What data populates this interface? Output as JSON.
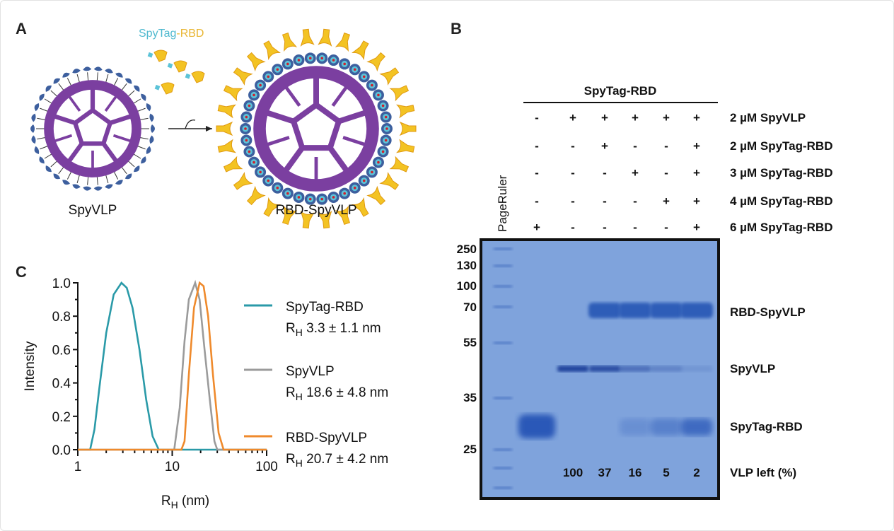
{
  "panels": {
    "a": {
      "label": "A",
      "reagent_part1": "SpyTag",
      "reagent_part2": "-RBD",
      "left_particle": "SpyVLP",
      "right_particle": "RBD-SpyVLP",
      "colors": {
        "capsid": "#7b3fa0",
        "spycatcher": "#3d5f9e",
        "spytag": "#5cc3d8",
        "rbd": "#f3c323",
        "rbd_text": "#e8b531"
      }
    },
    "b": {
      "label": "B",
      "group_header": "SpyTag-RBD",
      "ladder_name": "PageRuler",
      "conditions": [
        {
          "label": "2 µM SpyVLP",
          "marks": [
            "-",
            "+",
            "+",
            "+",
            "+",
            "+"
          ]
        },
        {
          "label": "2 µM SpyTag-RBD",
          "marks": [
            "-",
            "-",
            "+",
            "-",
            "-",
            "+"
          ]
        },
        {
          "label": "3 µM SpyTag-RBD",
          "marks": [
            "-",
            "-",
            "-",
            "+",
            "-",
            "+"
          ]
        },
        {
          "label": "4 µM SpyTag-RBD",
          "marks": [
            "-",
            "-",
            "-",
            "-",
            "+",
            "+"
          ]
        },
        {
          "label": "6 µM SpyTag-RBD",
          "marks": [
            "+",
            "-",
            "-",
            "-",
            "-",
            "+"
          ]
        }
      ],
      "ladder_kda": [
        "250",
        "130",
        "100",
        "70",
        "55",
        "35",
        "25"
      ],
      "band_labels": [
        "RBD-SpyVLP",
        "SpyVLP",
        "SpyTag-RBD"
      ],
      "vlp_left_label": "VLP left (%)",
      "vlp_left_values": [
        "",
        "100",
        "37",
        "16",
        "5",
        "2"
      ],
      "gel_color": "#7fa3dc"
    },
    "c": {
      "label": "C"
    }
  },
  "chart_data": {
    "type": "line",
    "xlabel_main": "R",
    "xlabel_sub": "H",
    "xlabel_unit": " (nm)",
    "ylabel": "Intensity",
    "xscale": "log",
    "xlim": [
      1,
      100
    ],
    "ylim": [
      0,
      1.0
    ],
    "xticks": [
      "1",
      "10",
      "100"
    ],
    "yticks": [
      "0.0",
      "0.2",
      "0.4",
      "0.6",
      "0.8",
      "1.0"
    ],
    "grid": false,
    "legend_placement": "right",
    "series": [
      {
        "name": "SpyTag-RBD",
        "stat_prefix": "R",
        "stat_sub": "H",
        "stat": " 3.3 ± 1.1 nm",
        "color": "#2a9aa8",
        "points": [
          [
            1,
            0
          ],
          [
            1.35,
            0
          ],
          [
            1.5,
            0.12
          ],
          [
            1.7,
            0.38
          ],
          [
            2.0,
            0.7
          ],
          [
            2.4,
            0.93
          ],
          [
            2.9,
            1.0
          ],
          [
            3.3,
            0.97
          ],
          [
            3.8,
            0.85
          ],
          [
            4.5,
            0.6
          ],
          [
            5.3,
            0.3
          ],
          [
            6.2,
            0.08
          ],
          [
            7.2,
            0
          ],
          [
            100,
            0
          ]
        ]
      },
      {
        "name": "SpyVLP",
        "stat_prefix": "R",
        "stat_sub": "H",
        "stat": " 18.6 ± 4.8 nm",
        "color": "#9b9b9b",
        "points": [
          [
            1,
            0
          ],
          [
            10.5,
            0
          ],
          [
            12,
            0.25
          ],
          [
            13.5,
            0.65
          ],
          [
            15,
            0.9
          ],
          [
            17.5,
            1.0
          ],
          [
            19.5,
            0.9
          ],
          [
            22,
            0.6
          ],
          [
            25,
            0.3
          ],
          [
            28,
            0.05
          ],
          [
            30,
            0
          ],
          [
            100,
            0
          ]
        ]
      },
      {
        "name": "RBD-SpyVLP",
        "stat_prefix": "R",
        "stat_sub": "H",
        "stat": " 20.7 ± 4.2 nm",
        "color": "#ef8a2c",
        "points": [
          [
            1,
            0
          ],
          [
            12.5,
            0
          ],
          [
            13.5,
            0.05
          ],
          [
            15,
            0.45
          ],
          [
            17,
            0.85
          ],
          [
            19.5,
            1.0
          ],
          [
            21.5,
            0.98
          ],
          [
            24,
            0.8
          ],
          [
            27,
            0.45
          ],
          [
            31,
            0.1
          ],
          [
            35,
            0
          ],
          [
            100,
            0
          ]
        ]
      }
    ]
  }
}
